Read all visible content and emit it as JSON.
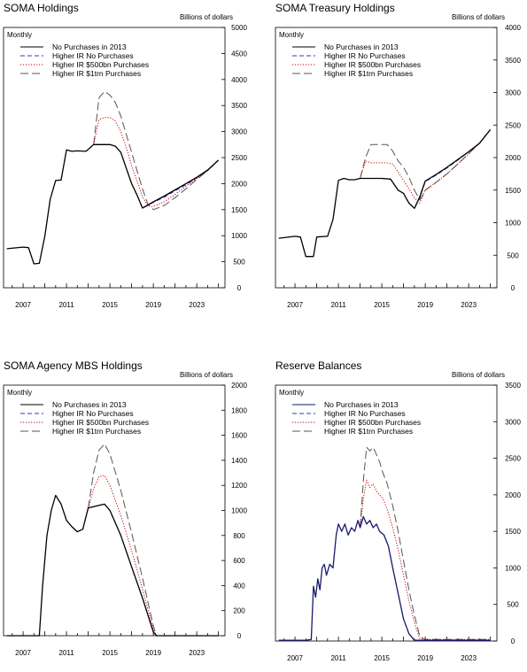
{
  "unit_label": "Billions of dollars",
  "frequency_label": "Monthly",
  "x_ticks": [
    "2007",
    "2011",
    "2015",
    "2019",
    "2023"
  ],
  "chart_data": [
    {
      "type": "line",
      "title": "SOMA Holdings",
      "ylim": [
        0,
        5000
      ],
      "y_ticks": [
        "0",
        "500",
        "1000",
        "1500",
        "2000",
        "2500",
        "3000",
        "3500",
        "4000",
        "4500",
        "5000"
      ],
      "series": [
        {
          "name": "No Purchases in 2013",
          "color": "#000000",
          "style": "solid",
          "x": [
            2005.5,
            2007.0,
            2007.5,
            2008.0,
            2008.5,
            2009.0,
            2009.5,
            2010.0,
            2010.5,
            2011.0,
            2011.5,
            2012.0,
            2012.8,
            2013.5,
            2014.0,
            2015.0,
            2015.5,
            2016.0,
            2016.5,
            2017.0,
            2017.5,
            2018.0,
            2019.0,
            2020.0,
            2021.0,
            2022.0,
            2023.0,
            2024.0,
            2025.0
          ],
          "values": [
            750,
            780,
            770,
            460,
            470,
            990,
            1700,
            2060,
            2070,
            2650,
            2620,
            2630,
            2620,
            2750,
            2750,
            2750,
            2720,
            2600,
            2300,
            2000,
            1780,
            1530,
            1650,
            1760,
            1880,
            2000,
            2120,
            2260,
            2450
          ]
        },
        {
          "name": "Higher IR No Purchases",
          "color": "#1f3fbf",
          "style": "dash",
          "x": [
            2013.5,
            2014.0,
            2015.0,
            2015.5,
            2016.0,
            2016.5,
            2017.0,
            2017.5,
            2018.0,
            2019.0,
            2020.0,
            2021.0,
            2022.0,
            2023.0,
            2024.0,
            2025.0
          ],
          "values": [
            2750,
            2750,
            2750,
            2720,
            2600,
            2300,
            2000,
            1780,
            1530,
            1640,
            1740,
            1860,
            1980,
            2110,
            2250,
            2450
          ]
        },
        {
          "name": "Higher IR $500bn Purchases",
          "color": "#cc0000",
          "style": "dot",
          "x": [
            2013.5,
            2014.0,
            2014.5,
            2015.0,
            2015.5,
            2016.0,
            2016.5,
            2017.0,
            2017.5,
            2018.0,
            2018.5,
            2019.0,
            2020.0,
            2021.0,
            2022.0,
            2023.0,
            2024.0,
            2025.0
          ],
          "values": [
            2750,
            3230,
            3270,
            3270,
            3200,
            3000,
            2700,
            2350,
            2050,
            1750,
            1570,
            1560,
            1650,
            1790,
            1950,
            2100,
            2250,
            2450
          ]
        },
        {
          "name": "Higher IR $1trn Purchases",
          "color": "#555555",
          "style": "longdash",
          "x": [
            2013.5,
            2014.0,
            2014.5,
            2015.0,
            2015.5,
            2016.0,
            2016.5,
            2017.0,
            2017.5,
            2018.0,
            2018.5,
            2019.0,
            2020.0,
            2021.0,
            2022.0,
            2023.0,
            2024.0,
            2025.0
          ],
          "values": [
            2750,
            3650,
            3770,
            3700,
            3560,
            3300,
            2950,
            2600,
            2250,
            1900,
            1600,
            1500,
            1580,
            1730,
            1900,
            2080,
            2250,
            2450
          ]
        }
      ]
    },
    {
      "type": "line",
      "title": "SOMA Treasury Holdings",
      "ylim": [
        0,
        4000
      ],
      "y_ticks": [
        "0",
        "500",
        "1000",
        "1500",
        "2000",
        "2500",
        "3000",
        "3500",
        "4000"
      ],
      "series": [
        {
          "name": "No Purchases in 2013",
          "color": "#000000",
          "style": "solid",
          "x": [
            2005.5,
            2007.0,
            2007.5,
            2008.0,
            2008.7,
            2009.0,
            2010.0,
            2010.5,
            2011.0,
            2011.5,
            2012.0,
            2012.5,
            2013.0,
            2014.0,
            2015.0,
            2015.8,
            2016.5,
            2017.0,
            2017.5,
            2018.0,
            2018.5,
            2019.0,
            2020.0,
            2021.0,
            2022.0,
            2023.0,
            2024.0,
            2025.0
          ],
          "values": [
            760,
            790,
            780,
            480,
            480,
            780,
            790,
            1050,
            1650,
            1680,
            1660,
            1660,
            1680,
            1680,
            1680,
            1670,
            1500,
            1450,
            1300,
            1220,
            1400,
            1640,
            1740,
            1850,
            1970,
            2090,
            2220,
            2430
          ]
        },
        {
          "name": "Higher IR No Purchases",
          "color": "#1f3fbf",
          "style": "dash",
          "x": [
            2013.0,
            2014.0,
            2015.0,
            2015.8,
            2016.5,
            2017.0,
            2017.5,
            2018.0,
            2018.5,
            2019.0,
            2020.0,
            2021.0,
            2022.0,
            2023.0,
            2024.0,
            2025.0
          ],
          "values": [
            1680,
            1680,
            1680,
            1670,
            1500,
            1450,
            1300,
            1220,
            1380,
            1630,
            1730,
            1840,
            1960,
            2090,
            2220,
            2430
          ]
        },
        {
          "name": "Higher IR $500bn Purchases",
          "color": "#cc0000",
          "style": "dot",
          "x": [
            2013.0,
            2013.5,
            2014.0,
            2015.0,
            2015.5,
            2016.0,
            2016.5,
            2017.0,
            2017.5,
            2018.0,
            2018.5,
            2019.0,
            2020.0,
            2021.0,
            2022.0,
            2023.0,
            2024.0,
            2025.0
          ],
          "values": [
            1680,
            1950,
            1920,
            1920,
            1920,
            1900,
            1780,
            1650,
            1520,
            1380,
            1300,
            1500,
            1620,
            1750,
            1900,
            2060,
            2220,
            2430
          ]
        },
        {
          "name": "Higher IR $1trn Purchases",
          "color": "#555555",
          "style": "longdash",
          "x": [
            2013.0,
            2013.5,
            2014.0,
            2015.0,
            2015.5,
            2016.0,
            2016.5,
            2017.0,
            2017.5,
            2018.0,
            2018.5,
            2019.0,
            2020.0,
            2021.0,
            2022.0,
            2023.0,
            2024.0,
            2025.0
          ],
          "values": [
            1680,
            2000,
            2200,
            2200,
            2200,
            2100,
            1950,
            1850,
            1700,
            1500,
            1350,
            1500,
            1620,
            1750,
            1900,
            2060,
            2220,
            2430
          ]
        }
      ]
    },
    {
      "type": "line",
      "title": "SOMA Agency MBS Holdings",
      "ylim": [
        0,
        2000
      ],
      "y_ticks": [
        "0",
        "200",
        "400",
        "600",
        "800",
        "1000",
        "1200",
        "1400",
        "1600",
        "1800",
        "2000"
      ],
      "series": [
        {
          "name": "No Purchases in 2013",
          "color": "#000000",
          "style": "solid",
          "x": [
            2005.5,
            2008.5,
            2008.8,
            2009.2,
            2009.6,
            2010.0,
            2010.5,
            2011.0,
            2011.5,
            2012.0,
            2012.5,
            2013.0,
            2014.0,
            2014.5,
            2015.0,
            2016.0,
            2017.0,
            2018.0,
            2019.0,
            2019.3,
            2020.0,
            2022.0,
            2025.0
          ],
          "values": [
            0,
            0,
            400,
            800,
            1000,
            1120,
            1050,
            920,
            870,
            830,
            850,
            1020,
            1040,
            1050,
            1000,
            800,
            550,
            300,
            30,
            0,
            0,
            0,
            0
          ]
        },
        {
          "name": "Higher IR No Purchases",
          "color": "#1f3fbf",
          "style": "dash",
          "x": [
            2013.0,
            2014.0,
            2014.5,
            2015.0,
            2016.0,
            2017.0,
            2018.0,
            2019.0,
            2019.3
          ],
          "values": [
            1020,
            1040,
            1050,
            1000,
            800,
            550,
            300,
            30,
            0
          ]
        },
        {
          "name": "Higher IR $500bn Purchases",
          "color": "#cc0000",
          "style": "dot",
          "x": [
            2013.0,
            2013.5,
            2014.0,
            2014.5,
            2015.0,
            2016.0,
            2017.0,
            2018.0,
            2019.0,
            2019.3
          ],
          "values": [
            1020,
            1170,
            1270,
            1280,
            1200,
            960,
            680,
            370,
            50,
            0
          ]
        },
        {
          "name": "Higher IR $1trn Purchases",
          "color": "#555555",
          "style": "longdash",
          "x": [
            2013.0,
            2013.5,
            2014.0,
            2014.5,
            2015.0,
            2016.0,
            2017.0,
            2018.0,
            2019.0,
            2019.3
          ],
          "values": [
            1020,
            1300,
            1480,
            1530,
            1450,
            1160,
            820,
            460,
            80,
            0
          ]
        }
      ]
    },
    {
      "type": "line",
      "title": "Reserve Balances",
      "ylim": [
        0,
        3500
      ],
      "y_ticks": [
        "0",
        "500",
        "1000",
        "1500",
        "2000",
        "2500",
        "3000",
        "3500"
      ],
      "series": [
        {
          "name": "No Purchases in 2013",
          "color": "#1a1a6e",
          "style": "solid",
          "x": [
            2005.5,
            2008.0,
            2008.5,
            2008.7,
            2008.9,
            2009.1,
            2009.3,
            2009.5,
            2009.7,
            2009.9,
            2010.2,
            2010.5,
            2010.8,
            2011.0,
            2011.3,
            2011.6,
            2011.9,
            2012.2,
            2012.5,
            2012.8,
            2013.0,
            2013.3,
            2013.6,
            2013.9,
            2014.2,
            2014.5,
            2014.8,
            2015.2,
            2015.6,
            2016.0,
            2016.5,
            2017.0,
            2017.5,
            2018.0,
            2019.0,
            2020.0,
            2022.0,
            2025.0
          ],
          "values": [
            10,
            10,
            20,
            750,
            600,
            850,
            700,
            1000,
            1050,
            900,
            1050,
            1000,
            1450,
            1600,
            1500,
            1600,
            1450,
            1550,
            1500,
            1650,
            1550,
            1700,
            1600,
            1650,
            1550,
            1600,
            1500,
            1450,
            1300,
            1000,
            650,
            300,
            100,
            10,
            10,
            10,
            10,
            10
          ]
        },
        {
          "name": "Higher IR No Purchases",
          "color": "#1f3fbf",
          "style": "dash",
          "x": [
            2013.0,
            2013.3,
            2013.6,
            2013.9,
            2014.2,
            2014.5,
            2014.8,
            2015.2,
            2015.6,
            2016.0,
            2016.5,
            2017.0,
            2017.5,
            2018.0,
            2019.0,
            2025.0
          ],
          "values": [
            1550,
            1700,
            1600,
            1650,
            1550,
            1600,
            1500,
            1450,
            1300,
            1000,
            650,
            300,
            100,
            10,
            10,
            10
          ]
        },
        {
          "name": "Higher IR $500bn Purchases",
          "color": "#cc0000",
          "style": "dot",
          "x": [
            2013.0,
            2013.3,
            2013.6,
            2013.9,
            2014.2,
            2014.5,
            2014.8,
            2015.1,
            2015.5,
            2016.0,
            2016.5,
            2017.0,
            2017.5,
            2018.0,
            2018.5,
            2019.0,
            2025.0
          ],
          "values": [
            1550,
            1950,
            2200,
            2100,
            2150,
            2050,
            2000,
            1950,
            1800,
            1550,
            1250,
            900,
            550,
            250,
            30,
            20,
            20
          ]
        },
        {
          "name": "Higher IR $1trn Purchases",
          "color": "#555555",
          "style": "longdash",
          "x": [
            2013.0,
            2013.3,
            2013.6,
            2013.9,
            2014.2,
            2014.5,
            2014.8,
            2015.1,
            2015.5,
            2016.0,
            2016.5,
            2017.0,
            2017.5,
            2018.0,
            2018.5,
            2019.0,
            2025.0
          ],
          "values": [
            1550,
            2200,
            2650,
            2600,
            2650,
            2550,
            2450,
            2300,
            2150,
            1850,
            1500,
            1100,
            700,
            350,
            60,
            20,
            20
          ]
        }
      ]
    }
  ]
}
